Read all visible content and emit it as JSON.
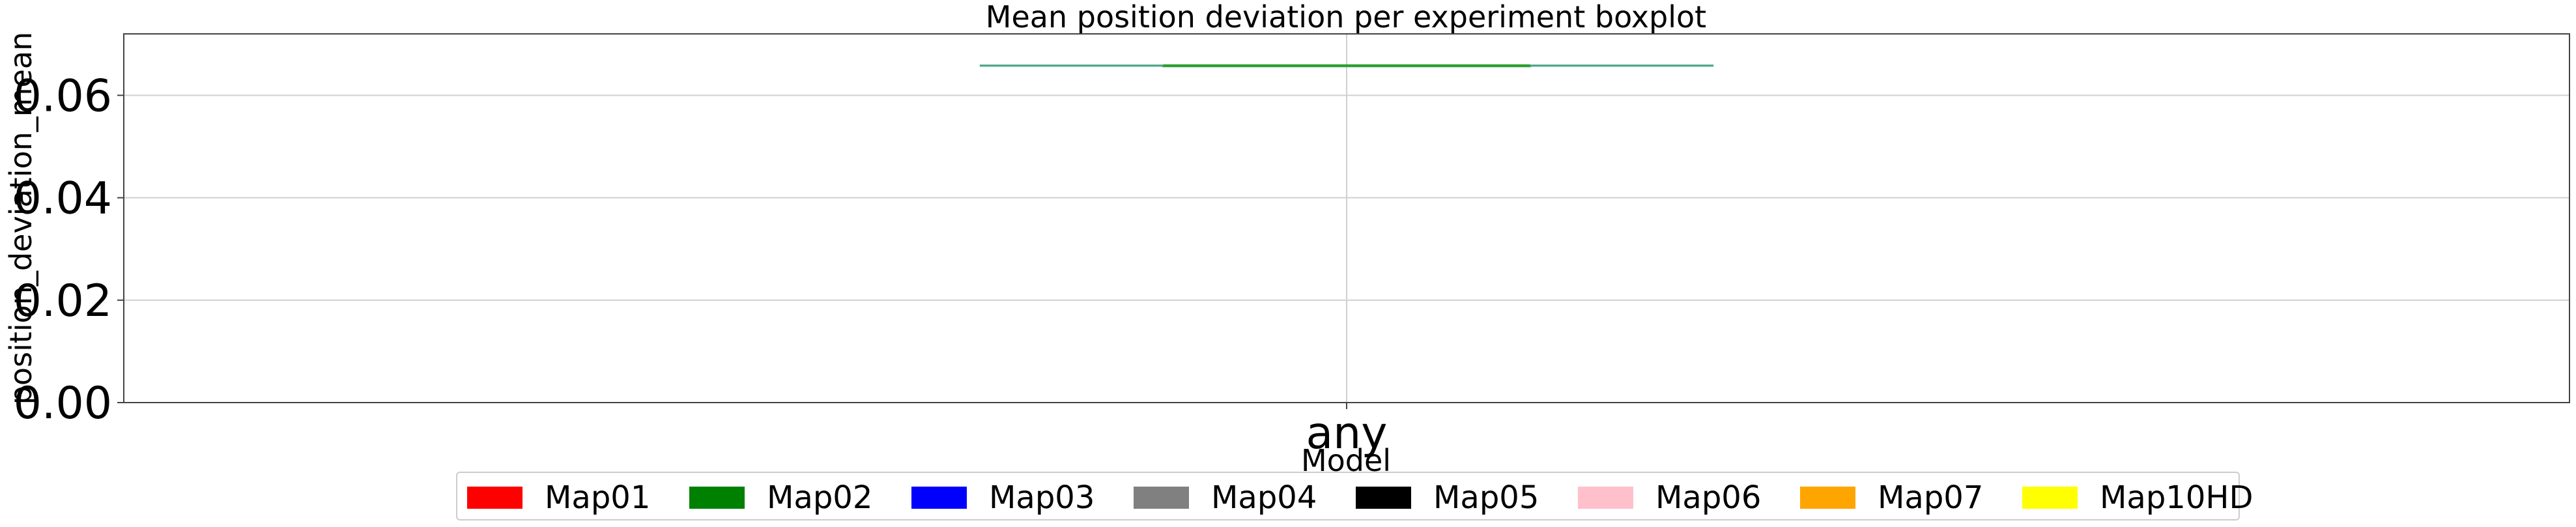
{
  "chart_data": {
    "type": "box",
    "title": "Mean position deviation per experiment boxplot",
    "xlabel": "Model",
    "ylabel": "position_deviation_mean",
    "categories": [
      "any"
    ],
    "ylim": [
      0.0,
      0.072
    ],
    "yticks": [
      0.0,
      0.02,
      0.04,
      0.06
    ],
    "ytick_labels": [
      "0.00",
      "0.02",
      "0.04",
      "0.06"
    ],
    "grid": true,
    "boxes": [
      {
        "category": "any",
        "min": 0.0658,
        "q1": 0.0658,
        "median": 0.0658,
        "q3": 0.0658,
        "max": 0.0658,
        "median_color": "#2ca02c",
        "whisker_color": "#4fa68a"
      }
    ],
    "legend": {
      "position": "bottom-center",
      "entries": [
        {
          "label": "Map01",
          "color": "#ff0000"
        },
        {
          "label": "Map02",
          "color": "#008000"
        },
        {
          "label": "Map03",
          "color": "#0000ff"
        },
        {
          "label": "Map04",
          "color": "#808080"
        },
        {
          "label": "Map05",
          "color": "#000000"
        },
        {
          "label": "Map06",
          "color": "#ffc0cb"
        },
        {
          "label": "Map07",
          "color": "#ffa500"
        },
        {
          "label": "Map10HD",
          "color": "#ffff00"
        }
      ]
    }
  }
}
